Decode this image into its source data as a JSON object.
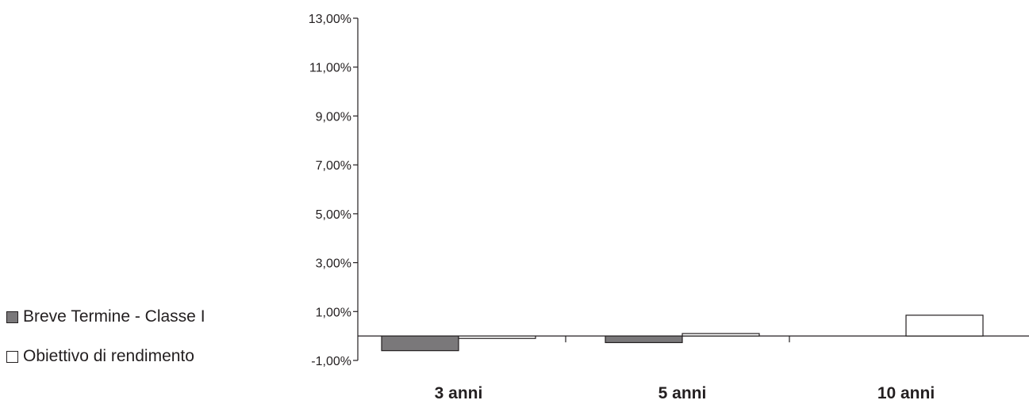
{
  "chart_data": {
    "type": "bar",
    "categories": [
      "3 anni",
      "5 anni",
      "10 anni"
    ],
    "series": [
      {
        "name": "Breve Termine - Classe I",
        "values": [
          -0.6,
          -0.27,
          null
        ]
      },
      {
        "name": "Obiettivo di rendimento",
        "values": [
          -0.1,
          0.1,
          0.85
        ]
      }
    ],
    "y_ticks": [
      "13,00%",
      "11,00%",
      "9,00%",
      "7,00%",
      "5,00%",
      "3,00%",
      "1,00%",
      "-1,00%"
    ],
    "y_tick_values": [
      13,
      11,
      9,
      7,
      5,
      3,
      1,
      -1
    ],
    "ylim": [
      -1,
      13
    ],
    "title": "",
    "xlabel": "",
    "ylabel": "",
    "legend_position": "left",
    "grid": false,
    "colors": {
      "series1": "#7a787a",
      "series2": "#ffffff",
      "stroke": "#231f20"
    }
  },
  "legend": {
    "items": [
      {
        "label": "Breve Termine - Classe I"
      },
      {
        "label": "Obiettivo di rendimento"
      }
    ]
  }
}
